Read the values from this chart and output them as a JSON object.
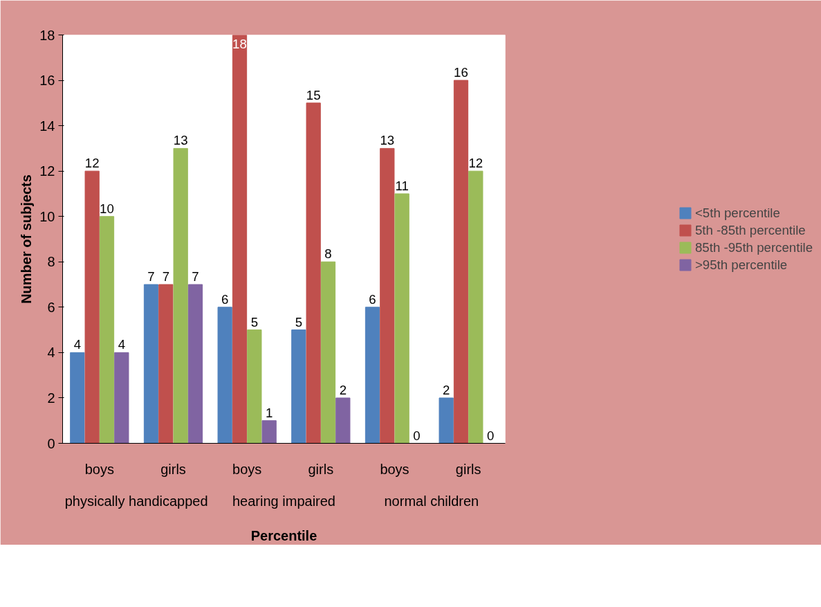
{
  "chart_data": {
    "type": "bar",
    "xlabel": "Percentile",
    "ylabel": "Number of subjects",
    "categories": [
      "boys",
      "girls",
      "boys",
      "girls",
      "boys",
      "girls"
    ],
    "annotations": [
      "physically handicapped",
      "hearing impaired",
      "normal children"
    ],
    "series": [
      {
        "name": "<5th percentile",
        "color": "#4f81bd",
        "values": [
          4,
          7,
          6,
          5,
          6,
          2
        ]
      },
      {
        "name": "5th -85th percentile",
        "color": "#c0504d",
        "values": [
          12,
          7,
          18,
          15,
          13,
          16
        ]
      },
      {
        "name": "85th -95th percentile",
        "color": "#9bbb59",
        "values": [
          10,
          13,
          5,
          8,
          11,
          12
        ]
      },
      {
        "name": ">95th percentile",
        "color": "#8064a2",
        "values": [
          4,
          7,
          1,
          2,
          0,
          0
        ]
      }
    ],
    "ylim": [
      0,
      18
    ],
    "yticks": [
      0,
      2,
      4,
      6,
      8,
      10,
      12,
      14,
      16,
      18
    ],
    "data_labels": true,
    "grid": false,
    "legend": "right"
  }
}
